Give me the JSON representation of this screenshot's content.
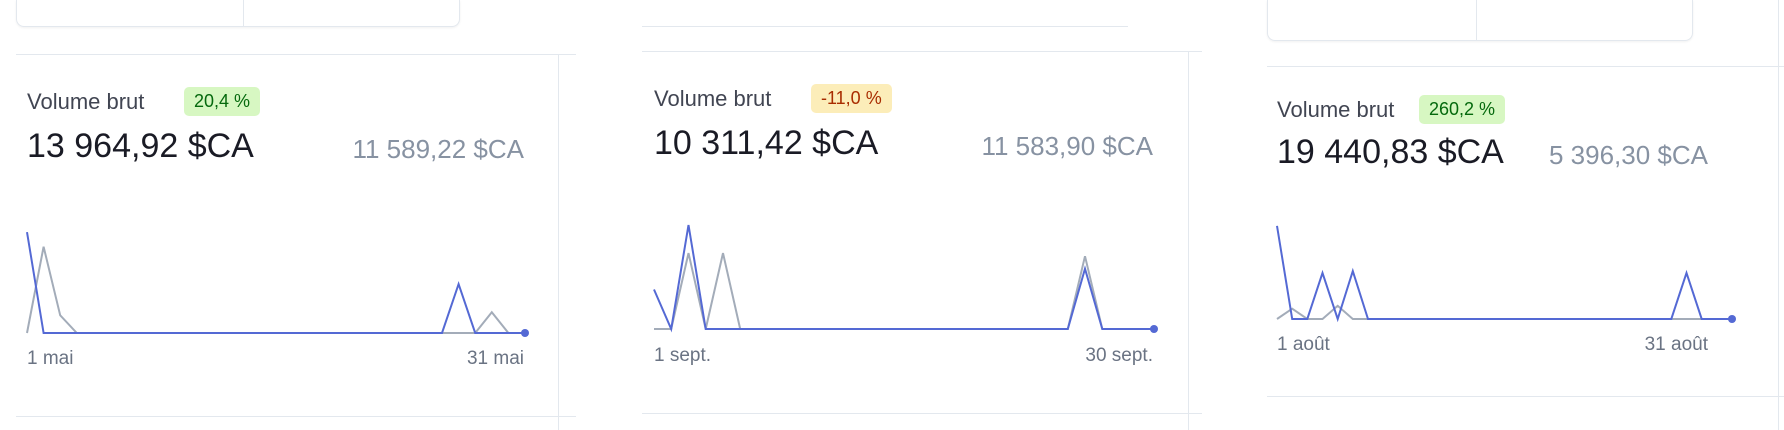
{
  "cards": [
    {
      "label": "Volume brut",
      "change": "20,4 %",
      "change_tone": "positive",
      "value": "13 964,92 $CA",
      "previous_value": "11 589,22 $CA",
      "date_start": "1 mai",
      "date_end": "31 mai"
    },
    {
      "label": "Volume brut",
      "change": "-11,0 %",
      "change_tone": "negative",
      "value": "10 311,42 $CA",
      "previous_value": "11 583,90 $CA",
      "date_start": "1 sept.",
      "date_end": "30 sept."
    },
    {
      "label": "Volume brut",
      "change": "260,2 %",
      "change_tone": "positive",
      "value": "19 440,83 $CA",
      "previous_value": "5 396,30 $CA",
      "date_start": "1 août",
      "date_end": "31 août"
    }
  ],
  "colors": {
    "current_series": "#5469d4",
    "previous_series": "#a3acb9",
    "positive_badge_bg": "#d7f7c2",
    "negative_badge_bg": "#fcedb9"
  },
  "chart_data": [
    {
      "type": "line",
      "x_start": "1 mai",
      "x_end": "31 mai",
      "ylim": [
        0,
        1
      ],
      "series": [
        {
          "values": [
            0.97,
            0,
            0,
            0,
            0,
            0,
            0,
            0,
            0,
            0,
            0,
            0,
            0,
            0,
            0,
            0,
            0,
            0,
            0,
            0,
            0,
            0,
            0,
            0,
            0,
            0,
            0.47,
            0,
            0,
            0,
            0
          ]
        },
        {
          "values": [
            0,
            0.83,
            0.17,
            0,
            0,
            0,
            0,
            0,
            0,
            0,
            0,
            0,
            0,
            0,
            0,
            0,
            0,
            0,
            0,
            0,
            0,
            0,
            0,
            0,
            0,
            0,
            0,
            0,
            0.2,
            0,
            0
          ]
        }
      ]
    },
    {
      "type": "line",
      "x_start": "1 sept.",
      "x_end": "30 sept.",
      "ylim": [
        0,
        1
      ],
      "series": [
        {
          "values": [
            0.38,
            0,
            1,
            0,
            0,
            0,
            0,
            0,
            0,
            0,
            0,
            0,
            0,
            0,
            0,
            0,
            0,
            0,
            0,
            0,
            0,
            0,
            0,
            0,
            0,
            0.58,
            0,
            0,
            0,
            0
          ]
        },
        {
          "values": [
            0,
            0,
            0.73,
            0,
            0.73,
            0,
            0,
            0,
            0,
            0,
            0,
            0,
            0,
            0,
            0,
            0,
            0,
            0,
            0,
            0,
            0,
            0,
            0,
            0,
            0,
            0.7,
            0,
            0,
            0,
            0
          ]
        }
      ]
    },
    {
      "type": "line",
      "x_start": "1 août",
      "x_end": "31 août",
      "ylim": [
        0,
        1
      ],
      "series": [
        {
          "values": [
            0.99,
            0,
            0,
            0.49,
            0,
            0.51,
            0,
            0,
            0,
            0,
            0,
            0,
            0,
            0,
            0,
            0,
            0,
            0,
            0,
            0,
            0,
            0,
            0,
            0,
            0,
            0,
            0,
            0.49,
            0,
            0,
            0
          ]
        },
        {
          "values": [
            0,
            0.11,
            0,
            0,
            0.14,
            0,
            0,
            0,
            0,
            0,
            0,
            0,
            0,
            0,
            0,
            0,
            0,
            0,
            0,
            0,
            0,
            0,
            0,
            0,
            0,
            0,
            0,
            0,
            0,
            0,
            0
          ]
        }
      ]
    }
  ]
}
